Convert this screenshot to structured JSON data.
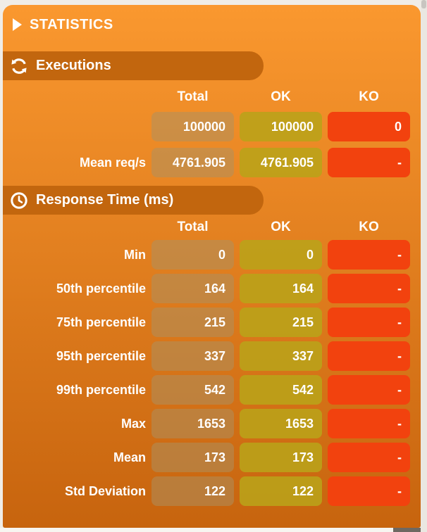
{
  "page": {
    "title": "STATISTICS"
  },
  "sections": [
    {
      "id": "executions",
      "title": "Executions",
      "icon": "refresh-icon",
      "columns": [
        "Total",
        "OK",
        "KO"
      ],
      "rows": [
        {
          "label": "",
          "total": "100000",
          "ok": "100000",
          "ko": "0"
        },
        {
          "label": "Mean req/s",
          "total": "4761.905",
          "ok": "4761.905",
          "ko": "-"
        }
      ]
    },
    {
      "id": "response-time",
      "title": "Response Time (ms)",
      "icon": "clock-icon",
      "columns": [
        "Total",
        "OK",
        "KO"
      ],
      "rows": [
        {
          "label": "Min",
          "total": "0",
          "ok": "0",
          "ko": "-"
        },
        {
          "label": "50th percentile",
          "total": "164",
          "ok": "164",
          "ko": "-"
        },
        {
          "label": "75th percentile",
          "total": "215",
          "ok": "215",
          "ko": "-"
        },
        {
          "label": "95th percentile",
          "total": "337",
          "ok": "337",
          "ko": "-"
        },
        {
          "label": "99th percentile",
          "total": "542",
          "ok": "542",
          "ko": "-"
        },
        {
          "label": "Max",
          "total": "1653",
          "ok": "1653",
          "ko": "-"
        },
        {
          "label": "Mean",
          "total": "173",
          "ok": "173",
          "ko": "-"
        },
        {
          "label": "Std Deviation",
          "total": "122",
          "ok": "122",
          "ko": "-"
        }
      ]
    }
  ],
  "colors": {
    "panel_top": "#FA982F",
    "panel_bottom": "#C7640E",
    "section_bar": "#C2660E",
    "cell_total": "rgba(170,145,100,0.5)",
    "cell_ok": "rgba(185,163,25,0.88)",
    "cell_ko": "#F2420E",
    "text": "#FFFFFF"
  }
}
